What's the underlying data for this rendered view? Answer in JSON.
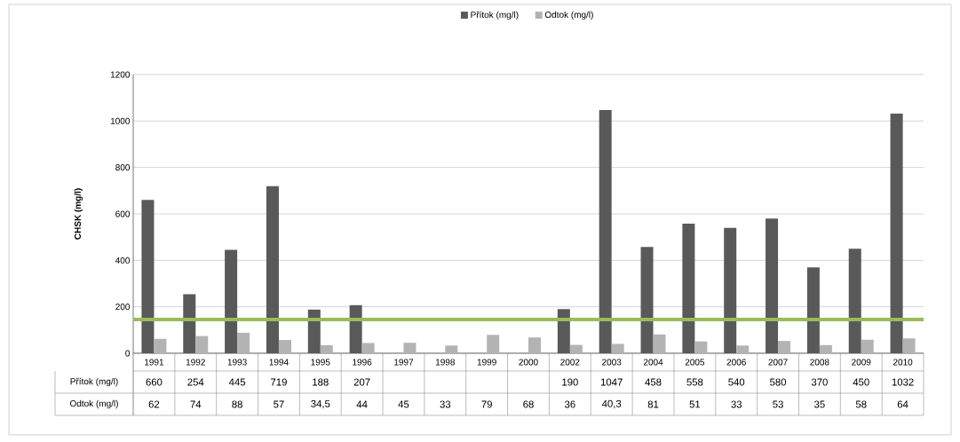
{
  "chart_data": {
    "type": "bar",
    "ylabel": "CHSK (mg/l)",
    "categories": [
      "1991",
      "1992",
      "1993",
      "1994",
      "1995",
      "1996",
      "1997",
      "1998",
      "1999",
      "2000",
      "2002",
      "2003",
      "2004",
      "2005",
      "2006",
      "2007",
      "2008",
      "2009",
      "2010"
    ],
    "series": [
      {
        "name": "Přítok (mg/l)",
        "color": "#595959",
        "values": [
          660,
          254,
          445,
          719,
          188,
          207,
          null,
          null,
          null,
          null,
          190,
          1047,
          458,
          558,
          540,
          580,
          370,
          450,
          1032
        ],
        "value_labels": [
          "660",
          "254",
          "445",
          "719",
          "188",
          "207",
          null,
          null,
          null,
          null,
          "190",
          "1047",
          "458",
          "558",
          "540",
          "580",
          "370",
          "450",
          "1032"
        ]
      },
      {
        "name": "Odtok  (mg/l)",
        "color": "#b3b3b3",
        "values": [
          62,
          74,
          88,
          57,
          34.5,
          44,
          45,
          33,
          79,
          68,
          36,
          40.3,
          81,
          51,
          33,
          53,
          35,
          58,
          64
        ],
        "value_labels": [
          "62",
          "74",
          "88",
          "57",
          "34,5",
          "44",
          "45",
          "33",
          "79",
          "68",
          "36",
          "40,3",
          "81",
          "51",
          "33",
          "53",
          "35",
          "58",
          "64"
        ]
      }
    ],
    "ylim": [
      0,
      1200
    ],
    "yticks": [
      0,
      200,
      400,
      600,
      800,
      1000,
      1200
    ],
    "grid": "y",
    "legend": "top",
    "ref_lines": [
      {
        "axis": "y",
        "value": 145,
        "color": "#9bbb59"
      }
    ]
  }
}
